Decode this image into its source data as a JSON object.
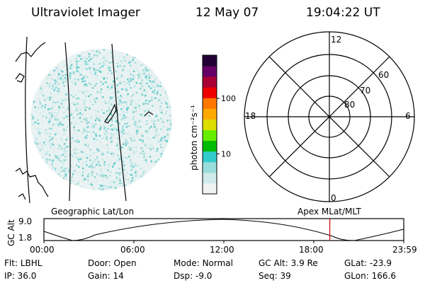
{
  "header": {
    "title": "Ultraviolet Imager",
    "date": "12 May 07",
    "time": "19:04:22 UT"
  },
  "colorbar": {
    "unit_label": "photon cm⁻²s⁻¹",
    "ticks": [
      {
        "label": "100",
        "value": 100
      },
      {
        "label": "10",
        "value": 10
      }
    ],
    "colors": [
      "#f2f4f4",
      "#cfeaea",
      "#99dddd",
      "#33cccc",
      "#00bb00",
      "#66ee00",
      "#dddd00",
      "#ffaa00",
      "#ff7700",
      "#ee0000",
      "#aa0033",
      "#660066",
      "#220033"
    ]
  },
  "polar_plot": {
    "clock_labels": {
      "top": "12",
      "left": "18",
      "right": "6",
      "bottom": "0"
    },
    "lat_labels": [
      "60",
      "70",
      "80"
    ]
  },
  "map_labels": {
    "left": "Geographic Lat/Lon",
    "right": "Apex MLat/MLT"
  },
  "altitude_plot": {
    "ylabel": "GC Alt",
    "y_ticks": [
      "9.0",
      "1.8"
    ],
    "x_ticks": [
      "00:00",
      "06:00",
      "12:00",
      "18:00",
      "23:59"
    ],
    "marker_time_hours": 19.07,
    "marker_color": "#cc0000"
  },
  "info": {
    "row1": [
      {
        "label": "Flt:",
        "value": "LBHL"
      },
      {
        "label": "Door:",
        "value": "Open"
      },
      {
        "label": "Mode:",
        "value": "Normal"
      },
      {
        "label": "GC Alt:",
        "value": "3.9 Re"
      },
      {
        "label": "GLat:",
        "value": "-23.9"
      }
    ],
    "row2": [
      {
        "label": "IP:",
        "value": "36.0"
      },
      {
        "label": "Gain:",
        "value": "14"
      },
      {
        "label": "Dsp:",
        "value": "-9.0"
      },
      {
        "label": "Seq:",
        "value": "39"
      },
      {
        "label": "GLon:",
        "value": "166.6"
      }
    ]
  }
}
